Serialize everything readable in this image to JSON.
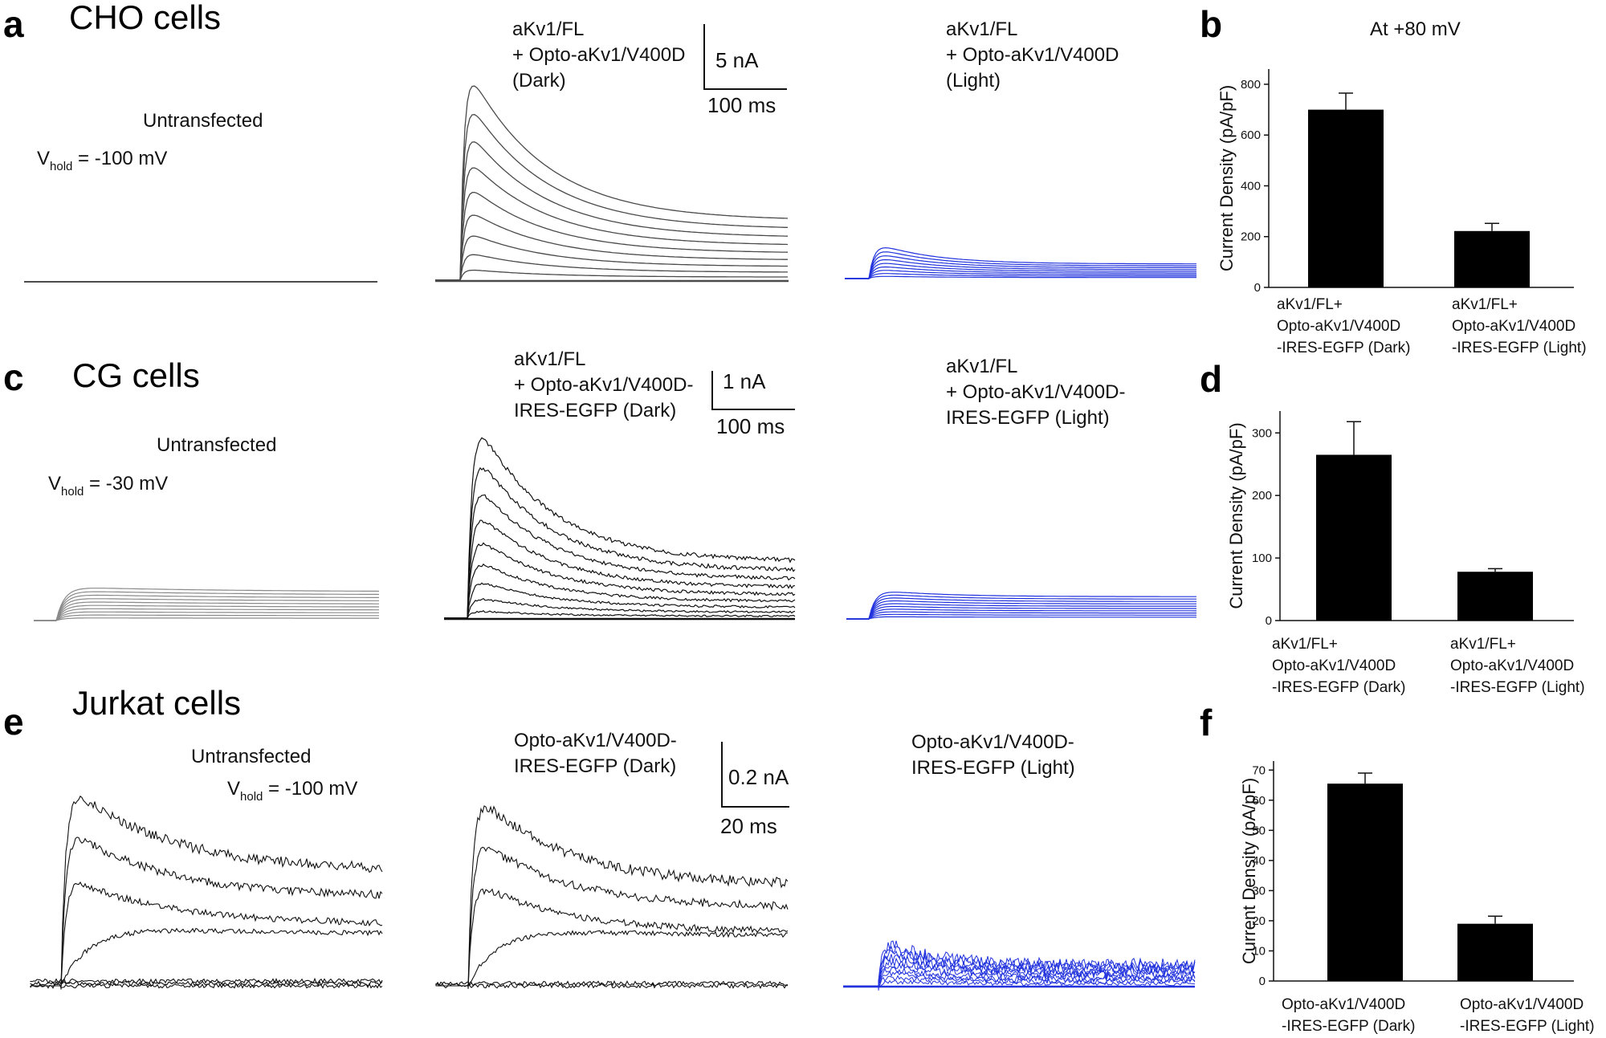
{
  "colors": {
    "trace_black": "#111111",
    "trace_light": "#4a4a4a",
    "trace_gray": "#8a8a8a",
    "trace_blue": "#2233dd",
    "bar": "#000000"
  },
  "rows": [
    {
      "panel_label": "a",
      "cell_type": "CHO cells",
      "untransfected": {
        "label": "Untransfected",
        "vhold_prefix": "V",
        "vhold_sub": "hold",
        "vhold_value": " = -100  mV"
      },
      "dark": {
        "lines": [
          "aKv1/FL",
          "+ Opto-aKv1/V400D",
          "(Dark)"
        ]
      },
      "light": {
        "lines": [
          "aKv1/FL",
          "+ Opto-aKv1/V400D",
          "(Light)"
        ]
      },
      "scalebar": {
        "current": "5 nA",
        "time": "100 ms"
      }
    },
    {
      "panel_label": "c",
      "cell_type": "CG cells",
      "untransfected": {
        "label": "Untransfected",
        "vhold_prefix": "V",
        "vhold_sub": "hold",
        "vhold_value": " = -30  mV"
      },
      "dark": {
        "lines": [
          "aKv1/FL",
          "+ Opto-aKv1/V400D-",
          "IRES-EGFP (Dark)"
        ]
      },
      "light": {
        "lines": [
          "aKv1/FL",
          "+ Opto-aKv1/V400D-",
          "IRES-EGFP (Light)"
        ]
      },
      "scalebar": {
        "current": "1 nA",
        "time": "100 ms"
      }
    },
    {
      "panel_label": "e",
      "cell_type": "Jurkat cells",
      "untransfected": {
        "label": "Untransfected",
        "vhold_prefix": "V",
        "vhold_sub": "hold",
        "vhold_value": " = -100  mV"
      },
      "dark": {
        "lines": [
          "Opto-aKv1/V400D-",
          "IRES-EGFP (Dark)"
        ]
      },
      "light": {
        "lines": [
          "Opto-aKv1/V400D-",
          "IRES-EGFP (Light)"
        ]
      },
      "scalebar": {
        "current": "0.2 nA",
        "time": "20 ms"
      }
    }
  ],
  "chart_data": [
    {
      "panel_label": "b",
      "type": "bar",
      "title": "At  +80  mV",
      "ylabel": "Current Density (pA/pF)",
      "ylim": [
        0,
        860
      ],
      "yticks": [
        0,
        200,
        400,
        600,
        800
      ],
      "categories": [
        [
          "aKv1/FL+",
          "Opto-aKv1/V400D",
          "-IRES-EGFP (Dark)"
        ],
        [
          "aKv1/FL+",
          "Opto-aKv1/V400D",
          "-IRES-EGFP (Light)"
        ]
      ],
      "values": [
        700,
        222
      ],
      "errors": [
        65,
        30
      ]
    },
    {
      "panel_label": "d",
      "type": "bar",
      "title": "",
      "ylabel": "Current Density (pA/pF)",
      "ylim": [
        0,
        335
      ],
      "yticks": [
        0,
        100,
        200,
        300
      ],
      "categories": [
        [
          "aKv1/FL+",
          "Opto-aKv1/V400D",
          "-IRES-EGFP (Dark)"
        ],
        [
          "aKv1/FL+",
          "Opto-aKv1/V400D",
          "-IRES-EGFP (Light)"
        ]
      ],
      "values": [
        265,
        78
      ],
      "errors": [
        53,
        5
      ]
    },
    {
      "panel_label": "f",
      "type": "bar",
      "title": "",
      "ylabel": "Current Density (pA/pF)",
      "ylim": [
        0,
        73
      ],
      "yticks": [
        0,
        10,
        20,
        30,
        40,
        50,
        60,
        70
      ],
      "categories": [
        [
          "Opto-aKv1/V400D",
          "-IRES-EGFP (Dark)"
        ],
        [
          "Opto-aKv1/V400D",
          "-IRES-EGFP (Light)"
        ]
      ],
      "values": [
        65.5,
        19
      ],
      "errors": [
        3.5,
        2.5
      ]
    }
  ]
}
